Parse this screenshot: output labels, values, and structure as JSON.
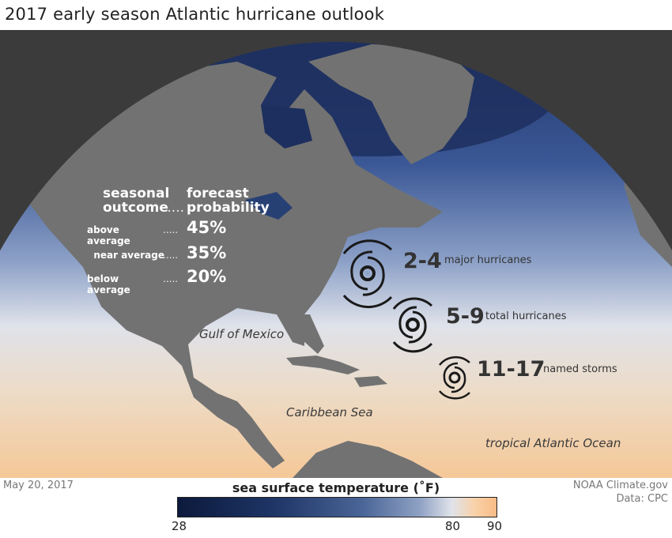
{
  "title": "2017 early season Atlantic hurricane outlook",
  "table": {
    "header_col1_line1": "seasonal",
    "header_col1_line2": "outcome",
    "header_col2_line1": "forecast",
    "header_col2_line2": "probability",
    "dots": ".....",
    "rows": [
      {
        "label": "above average",
        "value": "45%"
      },
      {
        "label": "near average",
        "value": "35%"
      },
      {
        "label": "below average",
        "value": "20%"
      }
    ]
  },
  "forecast": [
    {
      "count": "2-4",
      "label": "major hurricanes"
    },
    {
      "count": "5-9",
      "label": "total hurricanes"
    },
    {
      "count": "11-17",
      "label": "named storms"
    }
  ],
  "places": {
    "gulf": "Gulf of Mexico",
    "caribbean": "Caribbean Sea",
    "atlantic": "tropical Atlantic Ocean"
  },
  "footer": {
    "date": "May 20, 2017",
    "credit": "NOAA Climate.gov",
    "source": "Data: CPC"
  },
  "legend": {
    "title": "sea surface temperature (˚F)",
    "ticks": [
      "28",
      "80",
      "90"
    ],
    "min": 28,
    "max": 90
  },
  "colors": {
    "land": "#727272",
    "cold_water": "#1e3566",
    "warm_water": "#f6c08f",
    "background": "#3b3b3b"
  }
}
